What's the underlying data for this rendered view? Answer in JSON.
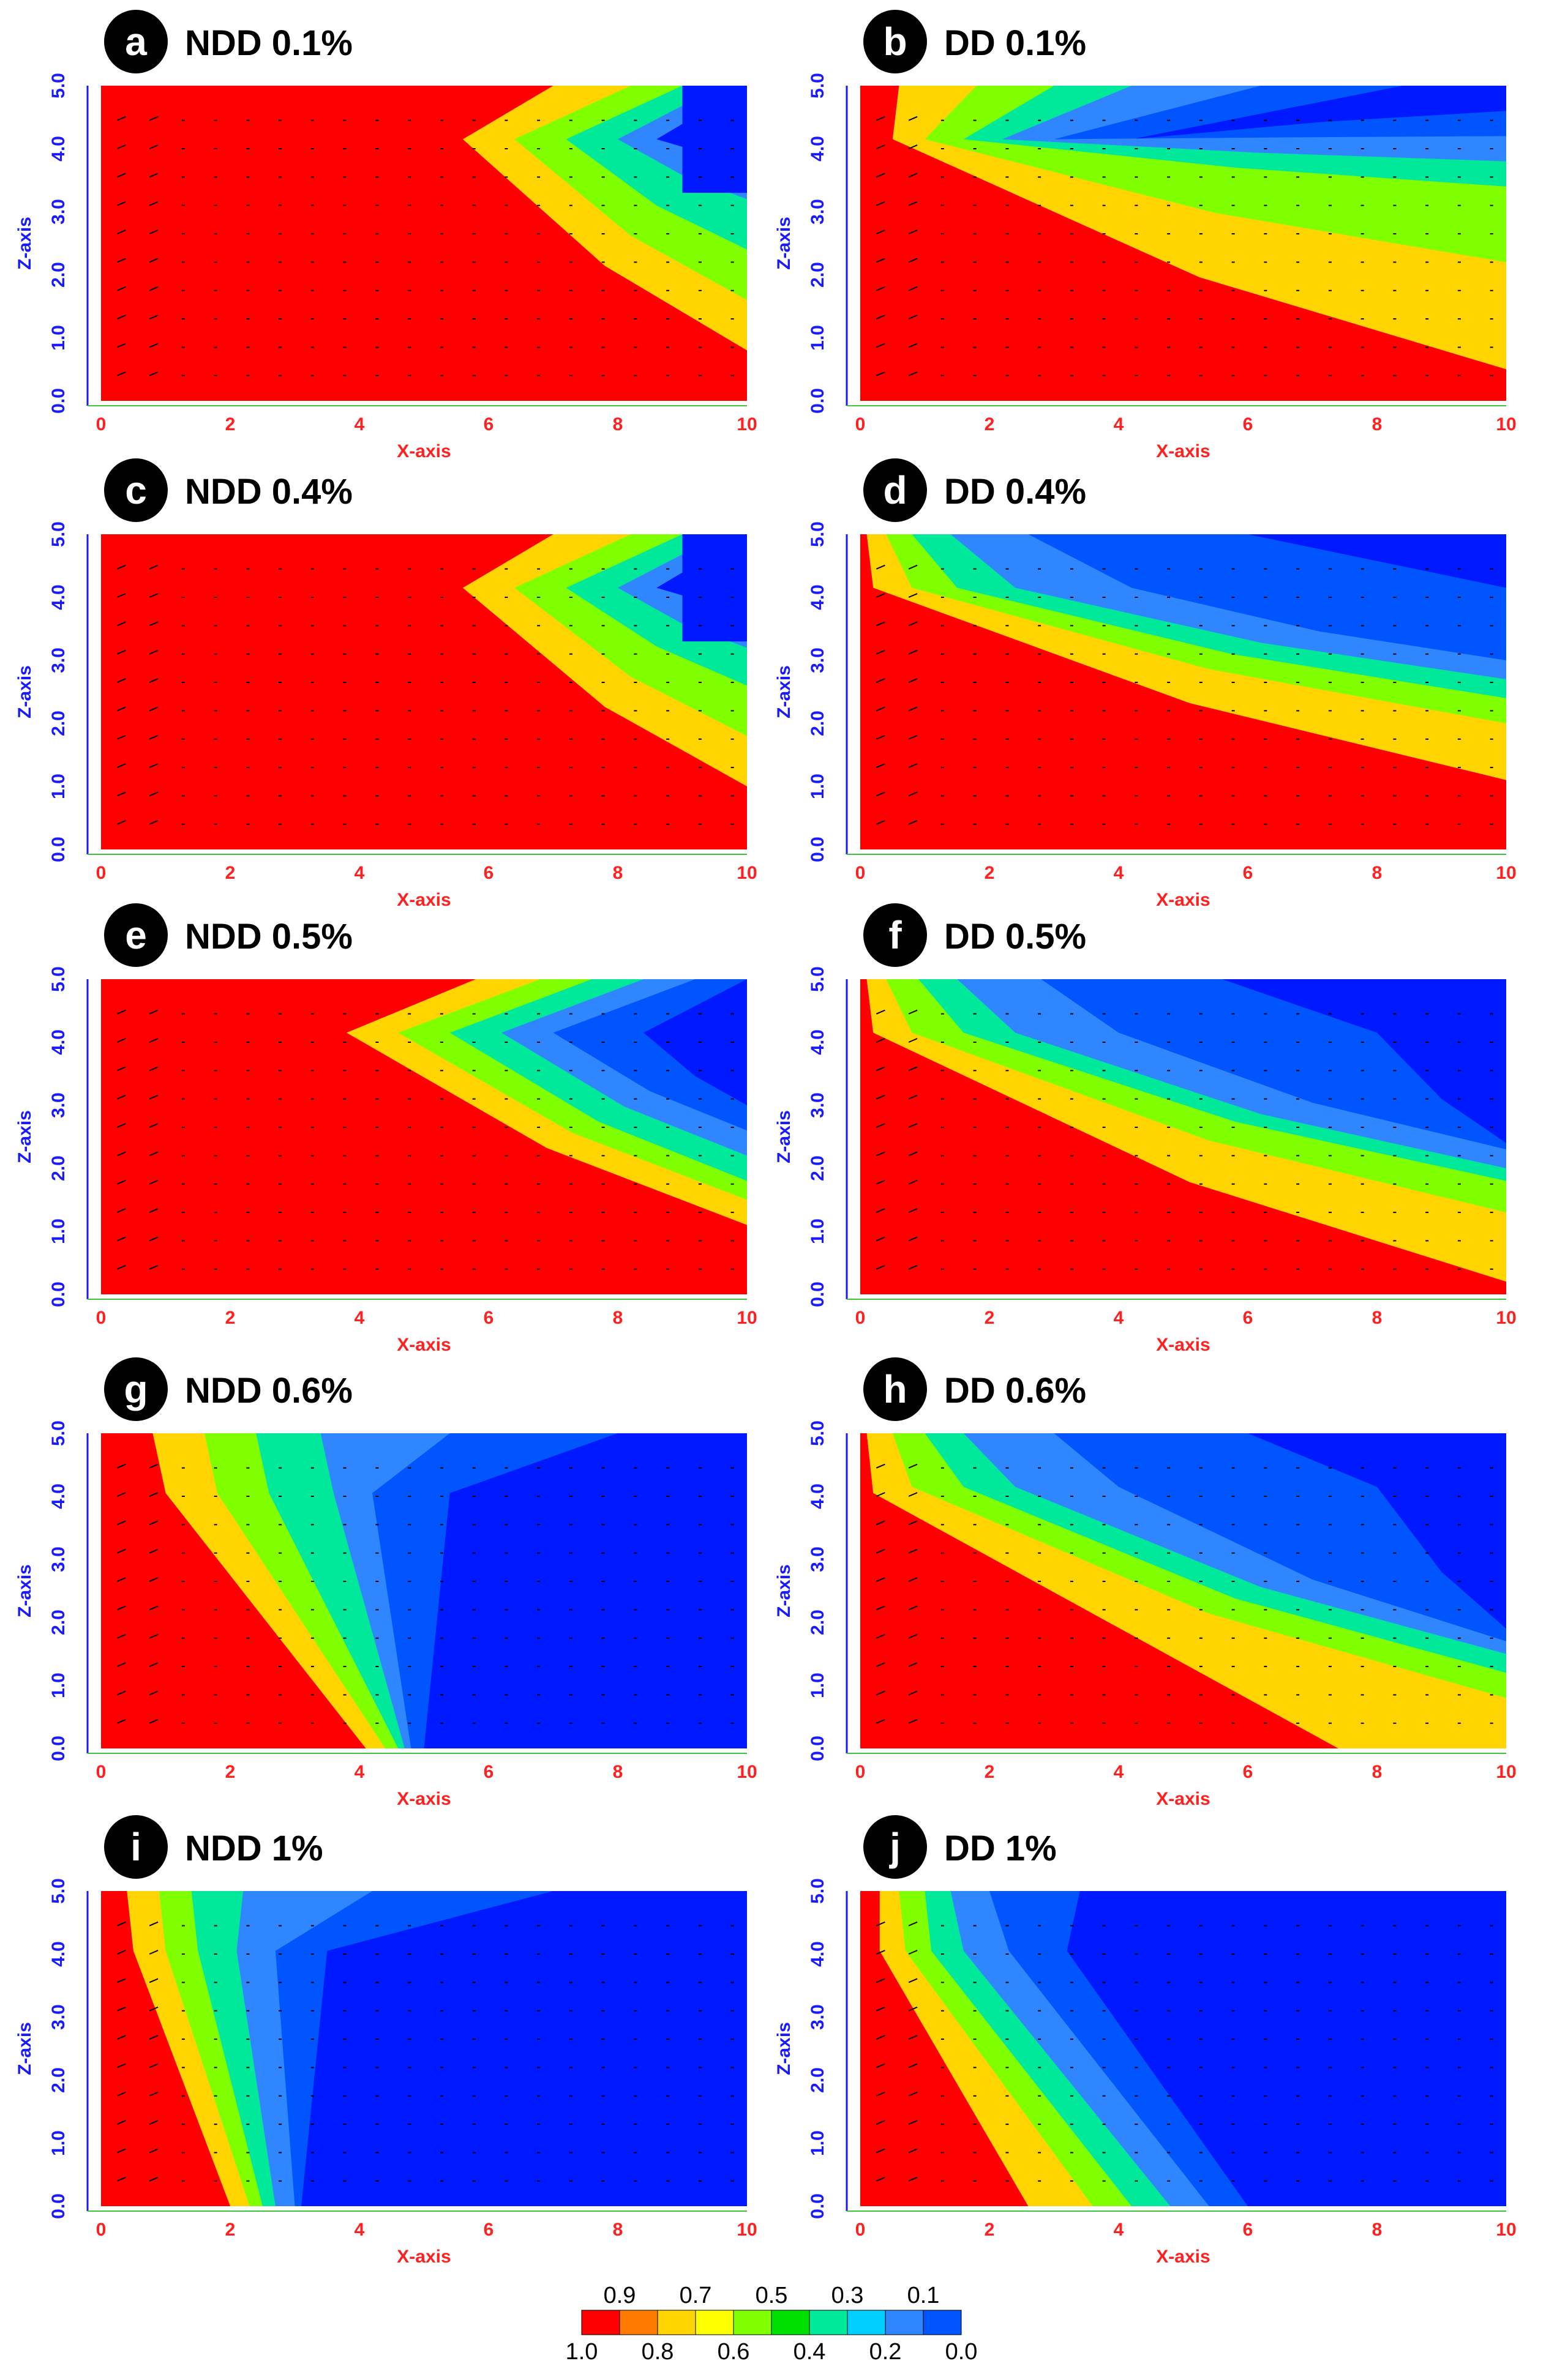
{
  "chart_data": {
    "type": "contour",
    "figure_description_free": true,
    "color_scale": {
      "levels": [
        1.0,
        0.9,
        0.8,
        0.7,
        0.6,
        0.5,
        0.4,
        0.3,
        0.2,
        0.1,
        0.0
      ],
      "colors": [
        "#ff0000",
        "#ff7a00",
        "#ffd400",
        "#ffff00",
        "#80ff00",
        "#00e000",
        "#00e89a",
        "#00d0ff",
        "#2f86ff",
        "#0055ff",
        "#0019ff"
      ],
      "top_labels": [
        "0.9",
        "0.7",
        "0.5",
        "0.3",
        "0.1"
      ],
      "bottom_labels": [
        "1.0",
        "0.8",
        "0.6",
        "0.4",
        "0.2",
        "0.0"
      ]
    },
    "axes": {
      "xlabel": "X-axis",
      "ylabel": "Z-axis",
      "xlim": [
        0,
        10
      ],
      "zlim": [
        0,
        5
      ],
      "x_ticks": [
        "0",
        "2",
        "4",
        "6",
        "8",
        "10"
      ],
      "z_ticks": [
        "0.0",
        "1.0",
        "2.0",
        "3.0",
        "4.0",
        "5.0"
      ]
    },
    "panels": [
      {
        "letter": "a",
        "title": "NDD 0.1%",
        "fronts": [
          [
            7.0,
            5.6,
            10.0,
            0.8
          ],
          [
            8.2,
            6.4,
            10.0,
            1.6
          ],
          [
            9.0,
            7.2,
            10.0,
            2.4
          ],
          [
            9.6,
            8.0,
            10.0,
            3.2
          ],
          [
            10.0,
            8.6,
            10.0,
            3.8
          ]
        ],
        "plateau": 3.3
      },
      {
        "letter": "b",
        "title": "DD 0.1%",
        "fronts": [
          [
            0.6,
            0.5,
            10.0,
            0.5
          ],
          [
            1.8,
            1.0,
            10.0,
            2.2
          ],
          [
            3.0,
            1.6,
            10.0,
            3.4
          ],
          [
            4.2,
            2.2,
            10.0,
            3.8
          ],
          [
            6.2,
            3.0,
            10.0,
            4.2
          ],
          [
            8.4,
            4.2,
            10.0,
            4.6
          ]
        ],
        "plateau": null
      },
      {
        "letter": "c",
        "title": "NDD 0.4%",
        "fronts": [
          [
            7.0,
            5.6,
            10.0,
            1.0
          ],
          [
            8.2,
            6.4,
            10.0,
            1.8
          ],
          [
            9.0,
            7.2,
            10.0,
            2.6
          ],
          [
            9.6,
            8.0,
            10.0,
            3.2
          ],
          [
            10.0,
            8.6,
            10.0,
            3.8
          ]
        ],
        "plateau": 3.3
      },
      {
        "letter": "d",
        "title": "DD 0.4%",
        "fronts": [
          [
            0.1,
            0.2,
            10.0,
            1.1
          ],
          [
            0.4,
            0.8,
            10.0,
            2.0
          ],
          [
            0.8,
            1.5,
            10.0,
            2.4
          ],
          [
            1.4,
            2.4,
            10.0,
            2.7
          ],
          [
            2.6,
            4.2,
            10.0,
            3.0
          ],
          [
            6.0,
            10.0,
            10.0,
            2.8
          ]
        ],
        "plateau": null
      },
      {
        "letter": "e",
        "title": "NDD 0.5%",
        "fronts": [
          [
            5.8,
            3.8,
            10.0,
            1.1
          ],
          [
            6.8,
            4.6,
            10.0,
            1.5
          ],
          [
            7.6,
            5.4,
            10.0,
            1.8
          ],
          [
            8.4,
            6.2,
            10.0,
            2.2
          ],
          [
            9.2,
            7.0,
            10.0,
            2.6
          ],
          [
            10.0,
            8.4,
            10.0,
            3.0
          ]
        ],
        "plateau": null
      },
      {
        "letter": "f",
        "title": "DD 0.5%",
        "fronts": [
          [
            0.1,
            0.2,
            10.0,
            0.2
          ],
          [
            0.4,
            0.8,
            10.0,
            1.3
          ],
          [
            0.9,
            1.6,
            10.0,
            1.8
          ],
          [
            1.5,
            2.4,
            10.0,
            2.0
          ],
          [
            2.8,
            4.0,
            10.0,
            2.3
          ],
          [
            5.6,
            8.0,
            10.0,
            2.4
          ]
        ],
        "plateau": null
      },
      {
        "letter": "g",
        "title": "NDD 0.6%",
        "fronts": [
          [
            0.8,
            1.0,
            4.1,
            0.0
          ],
          [
            1.6,
            1.8,
            4.4,
            0.0
          ],
          [
            2.4,
            2.6,
            4.6,
            0.0
          ],
          [
            3.4,
            3.6,
            4.7,
            0.0
          ],
          [
            5.4,
            4.2,
            4.8,
            0.0
          ],
          [
            8.0,
            5.4,
            5.0,
            0.0
          ]
        ],
        "plateau": null
      },
      {
        "letter": "h",
        "title": "DD 0.6%",
        "fronts": [
          [
            0.1,
            0.2,
            7.4,
            0.0
          ],
          [
            0.5,
            0.8,
            10.0,
            0.8
          ],
          [
            1.0,
            1.6,
            10.0,
            1.2
          ],
          [
            1.6,
            2.4,
            10.0,
            1.5
          ],
          [
            3.0,
            4.0,
            10.0,
            1.7
          ],
          [
            6.0,
            8.0,
            10.0,
            1.9
          ]
        ],
        "plateau": null
      },
      {
        "letter": "i",
        "title": "NDD 1%",
        "fronts": [
          [
            0.4,
            0.5,
            2.0,
            0.0
          ],
          [
            0.9,
            1.0,
            2.3,
            0.0
          ],
          [
            1.4,
            1.5,
            2.5,
            0.0
          ],
          [
            2.2,
            2.1,
            2.7,
            0.0
          ],
          [
            4.2,
            2.7,
            3.0,
            0.0
          ],
          [
            7.0,
            3.5,
            3.1,
            0.0
          ]
        ],
        "plateau": null
      },
      {
        "letter": "j",
        "title": "DD 1%",
        "fronts": [
          [
            0.3,
            0.3,
            2.6,
            0.0
          ],
          [
            0.6,
            0.7,
            3.6,
            0.0
          ],
          [
            1.0,
            1.1,
            4.2,
            0.0
          ],
          [
            1.4,
            1.6,
            4.8,
            0.0
          ],
          [
            2.0,
            2.3,
            5.4,
            0.0
          ],
          [
            3.4,
            3.2,
            6.0,
            0.0
          ]
        ],
        "plateau": null
      }
    ]
  }
}
